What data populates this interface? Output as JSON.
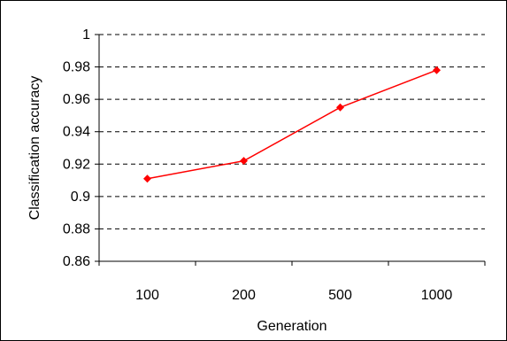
{
  "chart_data": {
    "type": "line",
    "title": "",
    "xlabel": "Generation",
    "ylabel": "Classification accuracy",
    "categories": [
      "100",
      "200",
      "500",
      "1000"
    ],
    "series": [
      {
        "values": [
          0.911,
          0.922,
          0.955,
          0.978
        ],
        "color": "#ff0000",
        "marker": "diamond"
      }
    ],
    "ylim": [
      0.86,
      1.0
    ],
    "yticks": [
      "0.86",
      "0.88",
      "0.9",
      "0.92",
      "0.94",
      "0.96",
      "0.98",
      "1"
    ],
    "grid": "horizontal-dashed",
    "legend": "none"
  }
}
